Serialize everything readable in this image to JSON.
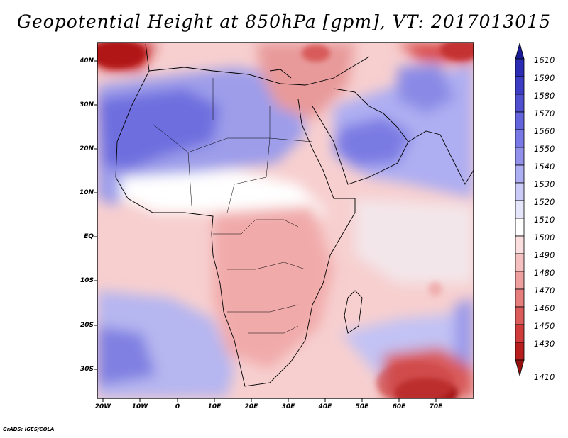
{
  "title": "Geopotential Height at 850hPa [gpm], VT: 2017013015",
  "credit": "GrADS: IGES/COLA",
  "lat_labels": [
    "40N",
    "30N",
    "20N",
    "10N",
    "EQ",
    "10S",
    "20S",
    "30S"
  ],
  "lon_labels": [
    "20W",
    "10W",
    "0",
    "10E",
    "20E",
    "30E",
    "40E",
    "50E",
    "60E",
    "70E"
  ],
  "colorbar": {
    "labels": [
      "1610",
      "1590",
      "1580",
      "1570",
      "1560",
      "1550",
      "1540",
      "1530",
      "1520",
      "1510",
      "1500",
      "1490",
      "1480",
      "1470",
      "1460",
      "1450",
      "1430",
      "1410"
    ],
    "colors": [
      "#1a1a96",
      "#2b2bb4",
      "#3c3cc4",
      "#4f4fd0",
      "#6464dc",
      "#7878e6",
      "#9191ec",
      "#aeaef2",
      "#cbcbf7",
      "#e6e6fb",
      "#ffffff",
      "#fbdede",
      "#f5c0c0",
      "#eea0a0",
      "#e67e7e",
      "#dc5c5c",
      "#d03c3c",
      "#b81e1e",
      "#961010"
    ]
  }
}
